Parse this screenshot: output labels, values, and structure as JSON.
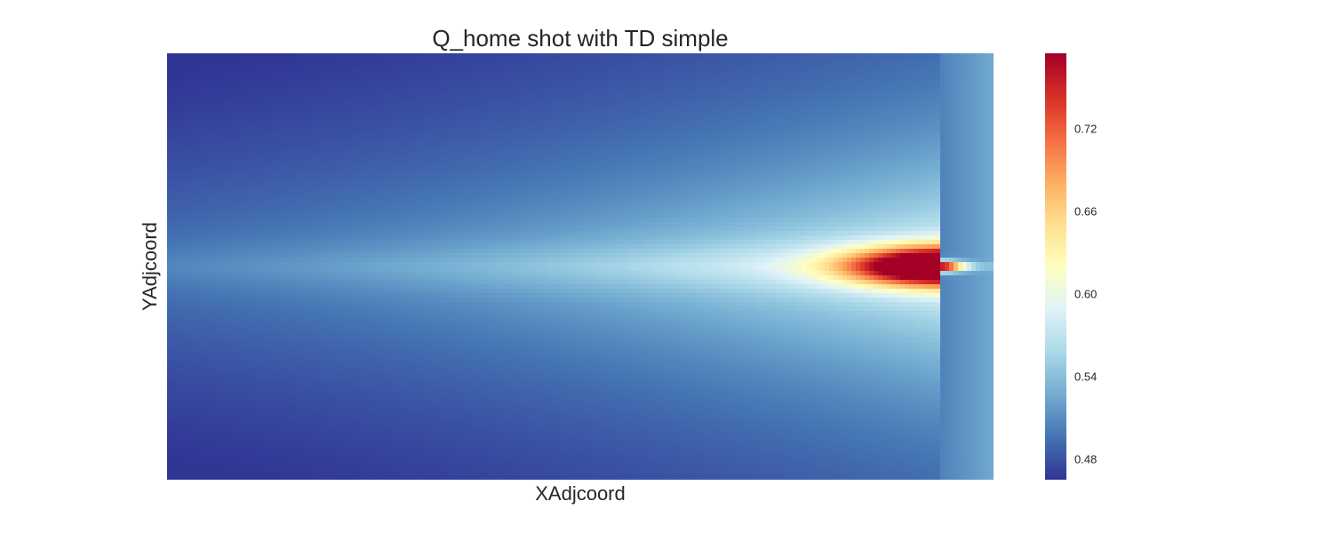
{
  "chart_data": {
    "type": "heatmap",
    "title": "Q_home shot with TD simple",
    "xlabel": "XAdjcoord",
    "ylabel": "YAdjcoord",
    "colormap": "RdYlBu_r",
    "colorbar": {
      "range": [
        0.465,
        0.775
      ],
      "ticks": [
        0.48,
        0.54,
        0.6,
        0.66,
        0.72
      ],
      "tick_labels": [
        "0.48",
        "0.54",
        "0.60",
        "0.66",
        "0.72"
      ]
    },
    "grid": false,
    "x_tick_labels": [],
    "y_tick_labels": [],
    "field": {
      "description_values": {
        "min": 0.465,
        "max": 0.775,
        "peak_location_fraction": [
          0.935,
          0.5
        ],
        "peak_value": 0.775
      }
    }
  }
}
